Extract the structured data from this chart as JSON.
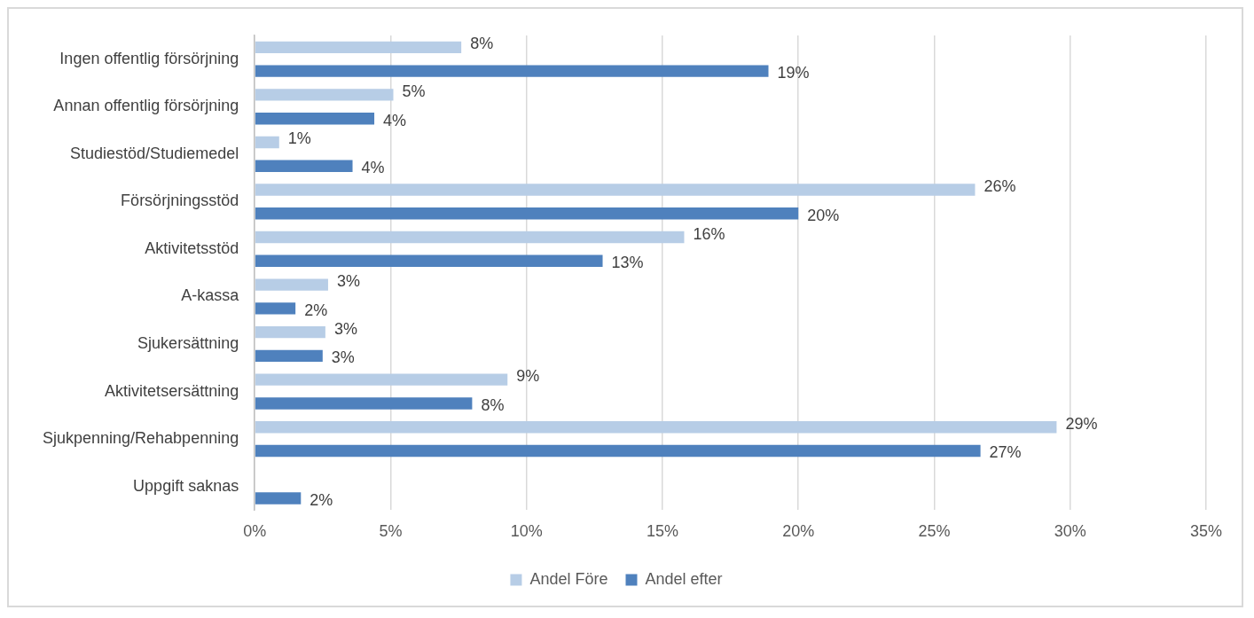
{
  "chart_data": {
    "type": "bar",
    "orientation": "horizontal",
    "categories": [
      "Ingen offentlig försörjning",
      "Annan offentlig försörjning",
      "Studiestöd/Studiemedel",
      "Försörjningsstöd",
      "Aktivitetsstöd",
      "A-kassa",
      "Sjukersättning",
      "Aktivitetsersättning",
      "Sjukpenning/Rehabpenning",
      "Uppgift saknas"
    ],
    "series": [
      {
        "name": "Andel Före",
        "color": "#b7cde6",
        "values": [
          7.6,
          5.1,
          0.9,
          26.5,
          15.8,
          2.7,
          2.6,
          9.3,
          29.5,
          null
        ],
        "value_labels": [
          "8%",
          "5%",
          "1%",
          "26%",
          "16%",
          "3%",
          "3%",
          "9%",
          "29%",
          null
        ]
      },
      {
        "name": "Andel efter",
        "color": "#4f81bd",
        "values": [
          18.9,
          4.4,
          3.6,
          20.0,
          12.8,
          1.5,
          2.5,
          8.0,
          26.7,
          1.7
        ],
        "value_labels": [
          "19%",
          "4%",
          "4%",
          "20%",
          "13%",
          "2%",
          "3%",
          "8%",
          "27%",
          "2%"
        ]
      }
    ],
    "xlim": [
      0,
      35
    ],
    "xticks": [
      {
        "value": 0,
        "label": "0%"
      },
      {
        "value": 5,
        "label": "5%"
      },
      {
        "value": 10,
        "label": "10%"
      },
      {
        "value": 15,
        "label": "15%"
      },
      {
        "value": 20,
        "label": "20%"
      },
      {
        "value": 25,
        "label": "25%"
      },
      {
        "value": 30,
        "label": "30%"
      },
      {
        "value": 35,
        "label": "35%"
      }
    ],
    "grid": "x",
    "legend": "bottom"
  }
}
